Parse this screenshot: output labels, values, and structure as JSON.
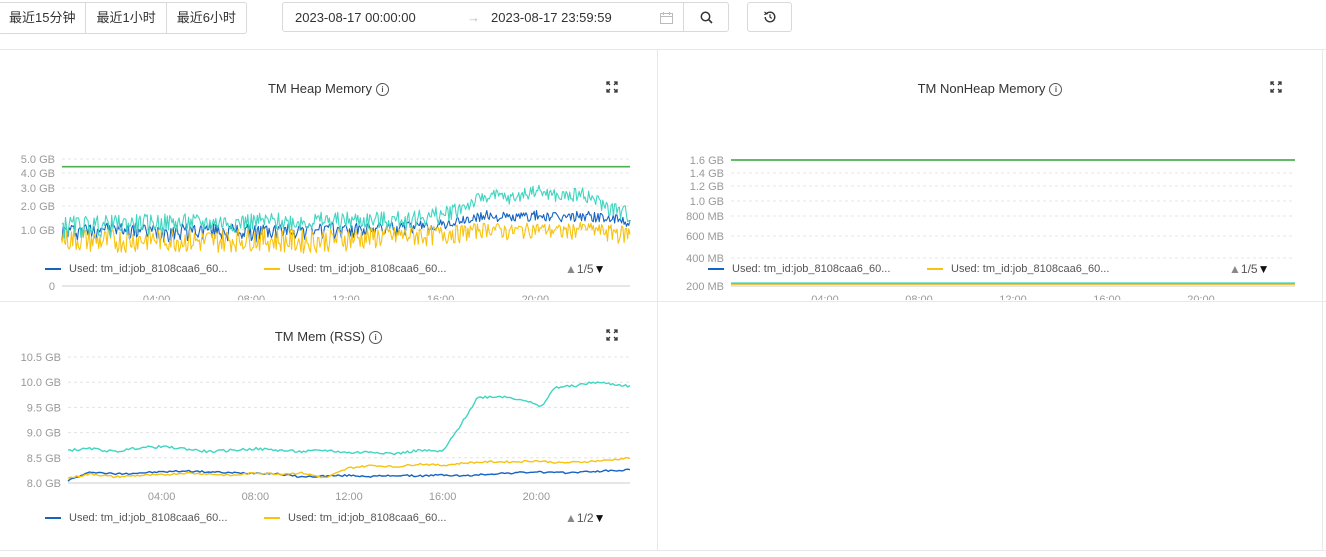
{
  "toolbar": {
    "quick_ranges": [
      "最近15分钟",
      "最近1小时",
      "最近6小时"
    ],
    "start_time": "2023-08-17 00:00:00",
    "end_time": "2023-08-17 23:59:59",
    "arrow": "→"
  },
  "legend_labels": {
    "series_a": "Used: tm_id:job_8108caa6_60...",
    "series_b": "Used: tm_id:job_8108caa6_60..."
  },
  "colors": {
    "blue": "#1563c2",
    "yellow": "#f7c30f",
    "teal": "#3fd5c1",
    "green": "#4caf50",
    "grid": "#e4e4e4",
    "axis": "#999999"
  },
  "panels": {
    "heap": {
      "title": "TM Heap Memory",
      "pager": "1/5"
    },
    "nonheap": {
      "title": "TM NonHeap Memory",
      "pager": "1/5"
    },
    "rss": {
      "title": "TM Mem (RSS)",
      "pager": "1/2"
    }
  },
  "chart_data": [
    {
      "type": "line",
      "title": "TM Heap Memory",
      "x_ticks": [
        "04:00",
        "08:00",
        "12:00",
        "16:00",
        "20:00"
      ],
      "y_ticks": [
        "0",
        "1.0 GB",
        "2.0 GB",
        "3.0 GB",
        "4.0 GB",
        "5.0 GB"
      ],
      "ylim": [
        0,
        5.0
      ],
      "series": [
        {
          "name": "Used: tm_id:job_8108caa6_60...",
          "color": "#1563c2",
          "x": [
            0,
            2,
            4,
            6,
            8,
            10,
            12,
            14,
            16,
            17,
            18,
            19,
            20,
            21,
            22,
            23,
            24
          ],
          "values": [
            1.0,
            1.1,
            1.0,
            1.05,
            1.0,
            1.05,
            1.05,
            1.1,
            1.2,
            1.4,
            1.6,
            1.5,
            1.6,
            1.5,
            1.6,
            1.5,
            1.3
          ]
        },
        {
          "name": "Used: tm_id:job_8108caa6_60...",
          "color": "#f7c30f",
          "x": [
            0,
            2,
            4,
            6,
            8,
            10,
            12,
            14,
            16,
            17,
            18,
            19,
            20,
            21,
            22,
            23,
            24
          ],
          "values": [
            0.85,
            0.8,
            0.85,
            0.8,
            0.85,
            0.8,
            0.85,
            0.9,
            0.95,
            1.0,
            1.1,
            1.0,
            1.1,
            1.0,
            1.1,
            1.0,
            0.95
          ]
        },
        {
          "color": "#3fd5c1",
          "x": [
            0,
            2,
            4,
            6,
            8,
            10,
            12,
            14,
            16,
            17,
            18,
            19,
            20,
            21,
            22,
            23,
            24
          ],
          "values": [
            1.2,
            1.25,
            1.3,
            1.3,
            1.35,
            1.35,
            1.4,
            1.4,
            1.6,
            2.0,
            2.6,
            2.4,
            2.9,
            2.5,
            2.7,
            2.0,
            1.6
          ]
        },
        {
          "color": "#4caf50",
          "x": [
            0,
            24
          ],
          "values": [
            4.45,
            4.45
          ]
        }
      ]
    },
    {
      "type": "line",
      "title": "TM NonHeap Memory",
      "x_ticks": [
        "04:00",
        "08:00",
        "12:00",
        "16:00",
        "20:00"
      ],
      "y_ticks": [
        "200 MB",
        "400 MB",
        "600 MB",
        "800 MB",
        "1.0 GB",
        "1.2 GB",
        "1.4 GB",
        "1.6 GB"
      ],
      "series": [
        {
          "name": "Used: tm_id:job_8108caa6_60...",
          "color": "#1563c2",
          "x": [
            0,
            24
          ],
          "values": [
            216,
            216
          ]
        },
        {
          "name": "Used: tm_id:job_8108caa6_60...",
          "color": "#f7c30f",
          "x": [
            0,
            24
          ],
          "values": [
            214,
            214
          ]
        },
        {
          "color": "#3fd5c1",
          "x": [
            0,
            24
          ],
          "values": [
            220,
            220
          ]
        },
        {
          "color": "#4caf50",
          "x": [
            0,
            24
          ],
          "values": [
            1600,
            1600
          ]
        }
      ]
    },
    {
      "type": "line",
      "title": "TM Mem (RSS)",
      "x_ticks": [
        "04:00",
        "08:00",
        "12:00",
        "16:00",
        "20:00"
      ],
      "y_ticks": [
        "8.0 GB",
        "8.5 GB",
        "9.0 GB",
        "9.5 GB",
        "10.0 GB",
        "10.5 GB"
      ],
      "ylim": [
        8.0,
        10.5
      ],
      "series": [
        {
          "name": "Used: tm_id:job_8108caa6_60...",
          "color": "#1563c2",
          "x": [
            0,
            1,
            2,
            3,
            4,
            5,
            6,
            7,
            8,
            9,
            10,
            11,
            12,
            13,
            14,
            15,
            16,
            17,
            18,
            19,
            20,
            21,
            22,
            23,
            24
          ],
          "values": [
            8.05,
            8.22,
            8.18,
            8.2,
            8.22,
            8.24,
            8.22,
            8.2,
            8.2,
            8.18,
            8.12,
            8.14,
            8.15,
            8.13,
            8.15,
            8.14,
            8.16,
            8.14,
            8.18,
            8.2,
            8.22,
            8.2,
            8.22,
            8.24,
            8.26
          ]
        },
        {
          "name": "Used: tm_id:job_8108caa6_60...",
          "color": "#f7c30f",
          "x": [
            0,
            1,
            2,
            3,
            4,
            5,
            6,
            7,
            8,
            9,
            10,
            11,
            12,
            13,
            14,
            15,
            16,
            17,
            18,
            19,
            20,
            21,
            22,
            23,
            24
          ],
          "values": [
            8.1,
            8.18,
            8.12,
            8.15,
            8.16,
            8.2,
            8.18,
            8.15,
            8.2,
            8.18,
            8.2,
            8.1,
            8.3,
            8.35,
            8.32,
            8.38,
            8.35,
            8.4,
            8.42,
            8.42,
            8.44,
            8.4,
            8.42,
            8.45,
            8.5
          ]
        },
        {
          "color": "#3fd5c1",
          "x": [
            0,
            1,
            2,
            3,
            4,
            5,
            6,
            7,
            8,
            9,
            10,
            11,
            12,
            13,
            14,
            15,
            16,
            16.7,
            17.5,
            18.5,
            19.5,
            20.2,
            20.8,
            21.5,
            22.5,
            23.5,
            24
          ],
          "values": [
            8.65,
            8.68,
            8.62,
            8.7,
            8.72,
            8.68,
            8.62,
            8.65,
            8.68,
            8.65,
            8.62,
            8.65,
            8.6,
            8.62,
            8.58,
            8.65,
            8.62,
            9.1,
            9.7,
            9.72,
            9.65,
            9.5,
            9.9,
            9.92,
            10.0,
            9.95,
            9.92
          ]
        }
      ]
    }
  ]
}
